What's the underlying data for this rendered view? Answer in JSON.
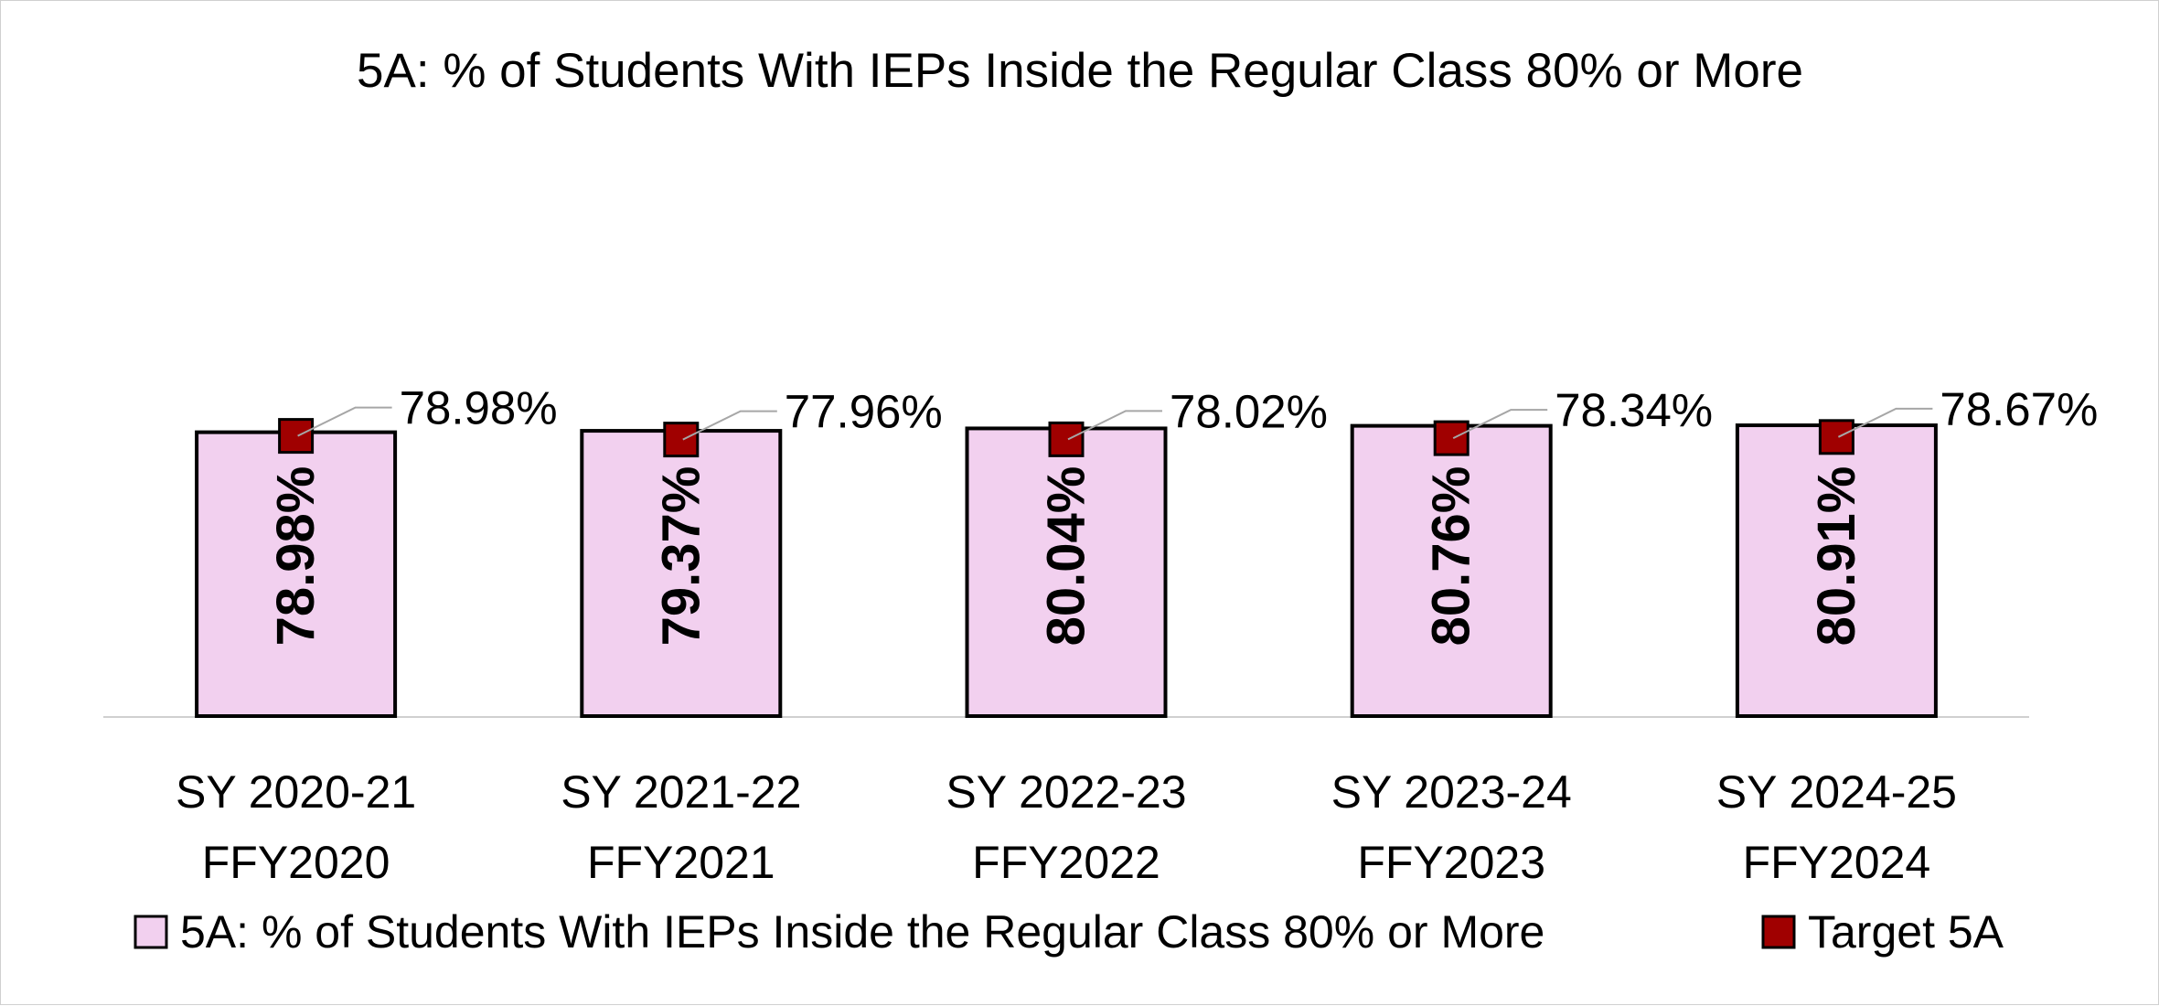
{
  "chart_data": {
    "type": "bar",
    "title": "5A: % of Students With IEPs Inside the Regular Class 80% or More",
    "categories": [
      [
        "SY 2020-21",
        "FFY2020"
      ],
      [
        "SY 2021-22",
        "FFY2021"
      ],
      [
        "SY 2022-23",
        "FFY2022"
      ],
      [
        "SY 2023-24",
        "FFY2023"
      ],
      [
        "SY 2024-25",
        "FFY2024"
      ]
    ],
    "series": [
      {
        "name": "5A: % of Students With IEPs Inside the Regular Class 80% or More",
        "kind": "bar",
        "values": [
          78.98,
          79.37,
          80.04,
          80.76,
          80.91
        ],
        "labels": [
          "78.98%",
          "79.37%",
          "80.04%",
          "80.76%",
          "80.91%"
        ],
        "color": "#f2d0ef"
      },
      {
        "name": "Target 5A",
        "kind": "marker",
        "values": [
          78.98,
          77.96,
          78.02,
          78.34,
          78.67
        ],
        "labels": [
          "78.98%",
          "77.96%",
          "78.02%",
          "78.34%",
          "78.67%"
        ],
        "color": "#a00000"
      }
    ],
    "ylim": [
      0,
      100
    ],
    "grid": false,
    "legend_position": "bottom"
  }
}
